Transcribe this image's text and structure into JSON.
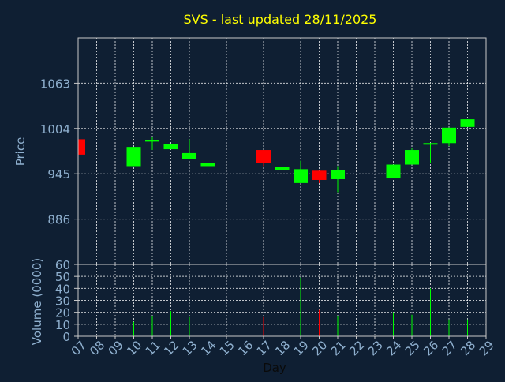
{
  "title": "SVS - last updated 28/11/2025",
  "colors": {
    "background": "#0f1f33",
    "title": "#ffff00",
    "axis_text": "#8fb0cf",
    "frame": "#c8c8c8",
    "up": "#00ff00",
    "down": "#ff0000"
  },
  "chart_data": [
    {
      "type": "candlestick",
      "ylabel": "Price",
      "yticks": [
        886,
        945,
        1004,
        1063
      ],
      "ylim": [
        827,
        1122
      ],
      "grid": true,
      "candles": [
        {
          "day": "07",
          "open": 990,
          "close": 970,
          "high": 990,
          "low": 970
        },
        {
          "day": "10",
          "open": 955,
          "close": 980,
          "high": 980,
          "low": 955
        },
        {
          "day": "11",
          "open": 987,
          "close": 989,
          "high": 993,
          "low": 976
        },
        {
          "day": "12",
          "open": 977,
          "close": 984,
          "high": 984,
          "low": 977
        },
        {
          "day": "13",
          "open": 964,
          "close": 972,
          "high": 990,
          "low": 964
        },
        {
          "day": "14",
          "open": 955,
          "close": 959,
          "high": 959,
          "low": 955
        },
        {
          "day": "17",
          "open": 976,
          "close": 959,
          "high": 976,
          "low": 955
        },
        {
          "day": "18",
          "open": 950,
          "close": 954,
          "high": 954,
          "low": 950
        },
        {
          "day": "19",
          "open": 933,
          "close": 951,
          "high": 962,
          "low": 933
        },
        {
          "day": "20",
          "open": 949,
          "close": 937,
          "high": 949,
          "low": 933
        },
        {
          "day": "21",
          "open": 938,
          "close": 950,
          "high": 955,
          "low": 921
        },
        {
          "day": "24",
          "open": 939,
          "close": 957,
          "high": 957,
          "low": 939
        },
        {
          "day": "25",
          "open": 957,
          "close": 976,
          "high": 978,
          "low": 957
        },
        {
          "day": "26",
          "open": 983,
          "close": 985,
          "high": 985,
          "low": 959
        },
        {
          "day": "27",
          "open": 985,
          "close": 1005,
          "high": 1005,
          "low": 981
        },
        {
          "day": "28",
          "open": 1006,
          "close": 1016,
          "high": 1016,
          "low": 1006
        }
      ]
    },
    {
      "type": "bar",
      "ylabel": "Volume (0000)",
      "xlabel": "Day",
      "yticks": [
        0,
        10,
        20,
        30,
        40,
        50,
        60
      ],
      "ylim": [
        0,
        60
      ],
      "grid": true,
      "x_ticks": [
        "07",
        "08",
        "09",
        "10",
        "11",
        "12",
        "13",
        "14",
        "15",
        "16",
        "17",
        "18",
        "19",
        "20",
        "21",
        "22",
        "23",
        "24",
        "25",
        "26",
        "27",
        "28",
        "29"
      ],
      "bars": [
        {
          "day": "07",
          "volume": 1,
          "direction": "down"
        },
        {
          "day": "10",
          "volume": 12,
          "direction": "up"
        },
        {
          "day": "11",
          "volume": 17,
          "direction": "up"
        },
        {
          "day": "12",
          "volume": 21,
          "direction": "up"
        },
        {
          "day": "13",
          "volume": 16,
          "direction": "up"
        },
        {
          "day": "14",
          "volume": 55,
          "direction": "up"
        },
        {
          "day": "17",
          "volume": 16,
          "direction": "down"
        },
        {
          "day": "18",
          "volume": 28,
          "direction": "up"
        },
        {
          "day": "19",
          "volume": 49,
          "direction": "up"
        },
        {
          "day": "20",
          "volume": 22,
          "direction": "down"
        },
        {
          "day": "21",
          "volume": 17,
          "direction": "up"
        },
        {
          "day": "24",
          "volume": 20,
          "direction": "up"
        },
        {
          "day": "25",
          "volume": 18,
          "direction": "up"
        },
        {
          "day": "26",
          "volume": 40,
          "direction": "up"
        },
        {
          "day": "27",
          "volume": 14,
          "direction": "up"
        },
        {
          "day": "28",
          "volume": 14,
          "direction": "up"
        }
      ]
    }
  ]
}
